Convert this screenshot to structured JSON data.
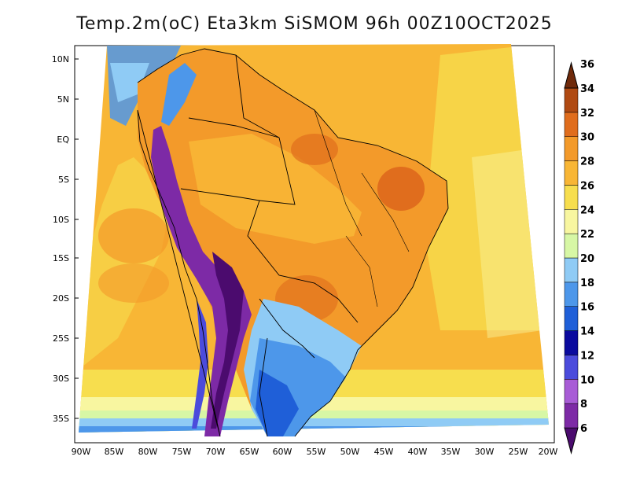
{
  "title": "Temp.2m(oC) Eta3km SiSMOM 96h 00Z10OCT2025",
  "lat_labels": [
    "10N",
    "5N",
    "EQ",
    "5S",
    "10S",
    "15S",
    "20S",
    "25S",
    "30S",
    "35S"
  ],
  "lon_labels": [
    "90W",
    "85W",
    "80W",
    "75W",
    "70W",
    "65W",
    "60W",
    "55W",
    "50W",
    "45W",
    "40W",
    "35W",
    "30W",
    "25W",
    "20W"
  ],
  "colorbar": {
    "labels": [
      "6",
      "8",
      "10",
      "12",
      "14",
      "16",
      "18",
      "20",
      "22",
      "24",
      "26",
      "28",
      "30",
      "32",
      "34",
      "36"
    ],
    "colors": [
      "#4b0b6e",
      "#7d2aa6",
      "#a85cd6",
      "#4b4bdc",
      "#0a0a9e",
      "#1f5fd8",
      "#4d97ea",
      "#8fcbf5",
      "#d7f7a5",
      "#f8f6a0",
      "#f7de4e",
      "#f8b635",
      "#f39a2a",
      "#e06d1d",
      "#b04a12",
      "#6f2a0b"
    ]
  }
}
